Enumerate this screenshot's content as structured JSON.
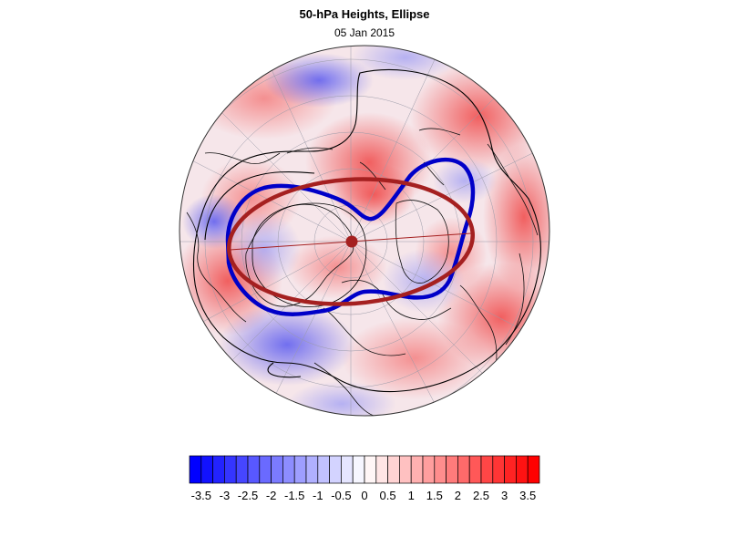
{
  "title": "50-hPa Heights, Ellipse",
  "subtitle": "05 Jan 2015",
  "map": {
    "projection": "north-polar-stereographic",
    "field": "50-hPa height anomaly (shaded)",
    "contour_color": "#000000",
    "vortex_edge_color": "#0000c8",
    "ellipse_color": "#a52020",
    "ellipse_center_color": "#a52020"
  },
  "colorbar": {
    "min": -3.75,
    "max": 3.75,
    "step": 0.25,
    "tick_labels": [
      "-3.5",
      "-3",
      "-2.5",
      "-2",
      "-1.5",
      "-1",
      "-0.5",
      "0",
      "0.5",
      "1",
      "1.5",
      "2",
      "2.5",
      "3",
      "3.5"
    ],
    "negative_color": "#0000ff",
    "neutral_color": "#ffffff",
    "positive_color": "#ff0000"
  }
}
